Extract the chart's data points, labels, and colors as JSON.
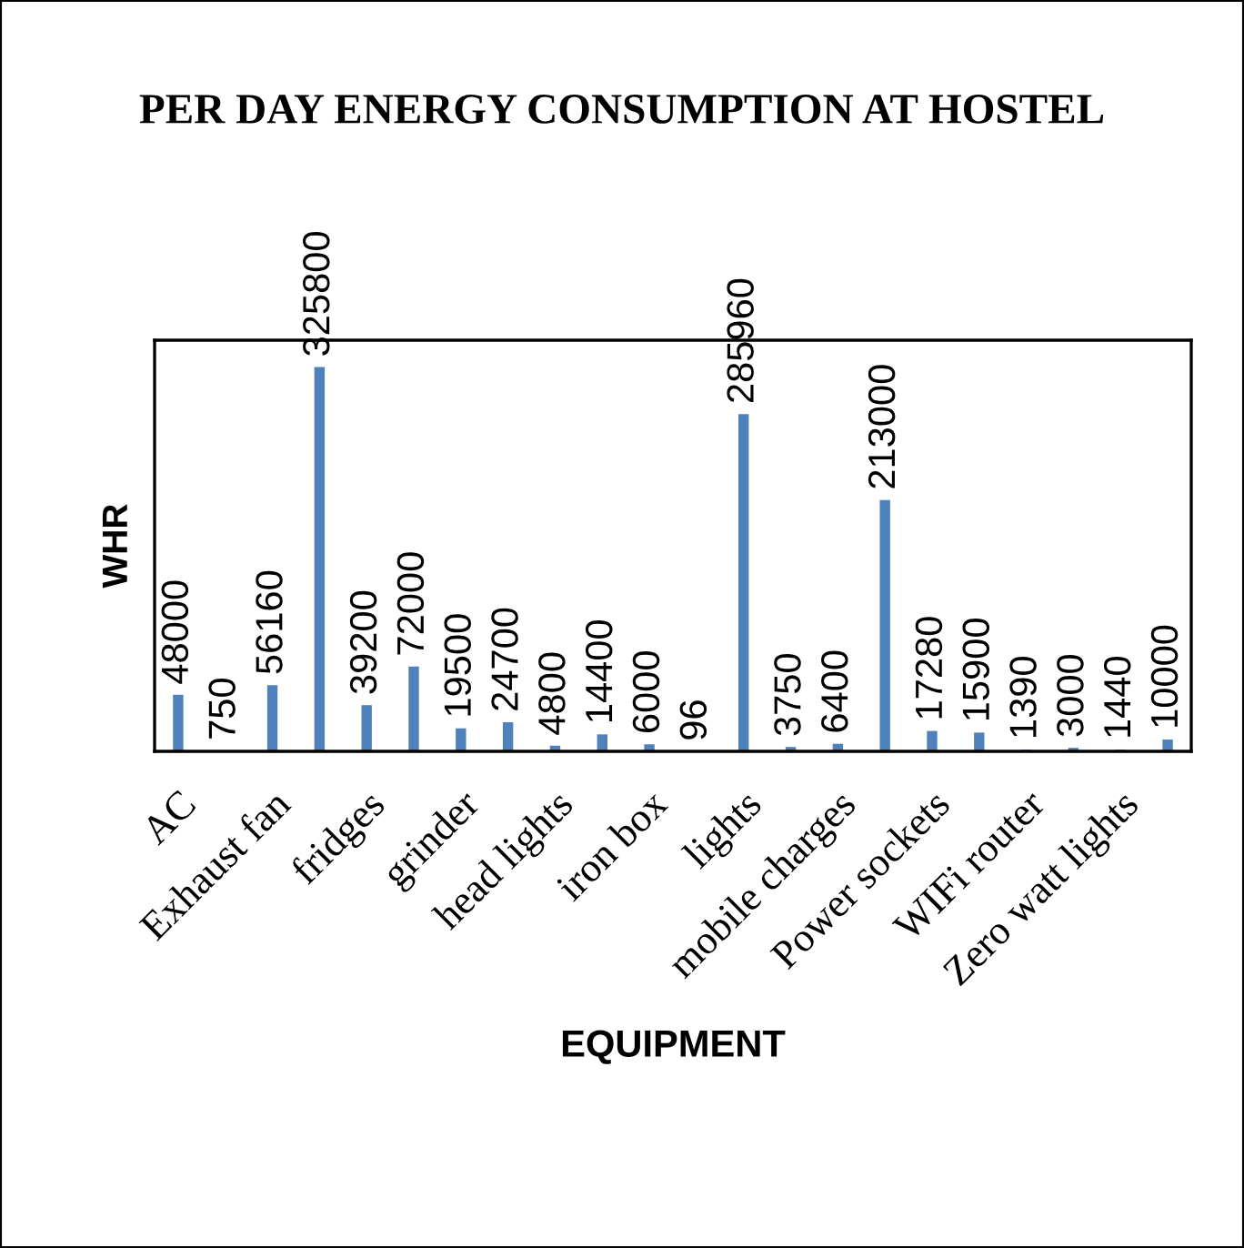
{
  "chart_data": {
    "type": "bar",
    "title": "PER DAY ENERGY CONSUMPTION AT HOSTEL",
    "xlabel": "EQUIPMENT",
    "ylabel": "WHR",
    "categories": [
      "AC",
      null,
      "Exhaust fan",
      null,
      "fridges",
      null,
      "grinder",
      null,
      "head lights",
      null,
      "iron box",
      null,
      "lights",
      null,
      "mobile charges",
      null,
      "Power sockets",
      null,
      "WIFi router",
      null,
      "Zero watt lights",
      null
    ],
    "values": [
      48000,
      750,
      56160,
      325800,
      39200,
      72000,
      19500,
      24700,
      4800,
      14400,
      6000,
      96,
      285960,
      3750,
      6400,
      213000,
      17280,
      15900,
      1390,
      3000,
      1440,
      10000
    ],
    "color": "#4f81bd",
    "data_labels": true,
    "tick_labels": "x",
    "grid": false,
    "legend": false
  }
}
